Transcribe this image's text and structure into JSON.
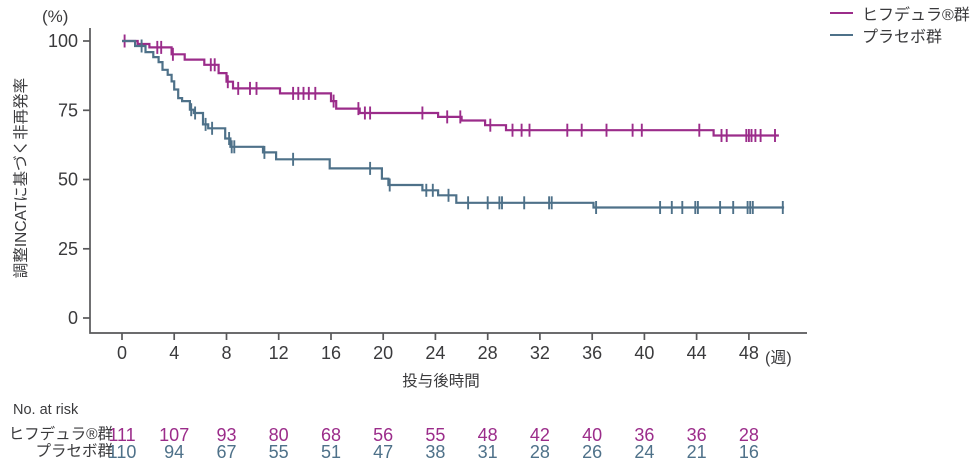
{
  "labels": {
    "percent_unit": "(%)",
    "y_axis_title": "調整INCATに基づく非再発率",
    "x_axis_title": "投与後時間",
    "week_unit": "(週)",
    "at_risk_header": "No. at risk"
  },
  "legend": {
    "items": [
      {
        "label": "ヒフデュラ®群",
        "color": "#9b2c8a"
      },
      {
        "label": "プラセボ群",
        "color": "#4e7189"
      }
    ]
  },
  "colors": {
    "hifdura": "#9b2c8a",
    "placebo": "#4e7189",
    "axis": "#58585a",
    "text": "#3a3a3c"
  },
  "chart_data": {
    "type": "line",
    "subtype": "kaplan-meier-step",
    "title": "",
    "xlabel": "投与後時間",
    "x_unit": "週",
    "ylabel": "調整INCATに基づく非再発率",
    "y_unit": "%",
    "xticks": [
      0,
      4,
      8,
      12,
      16,
      20,
      24,
      28,
      32,
      36,
      40,
      44,
      48
    ],
    "yticks": [
      0,
      25,
      50,
      75,
      100
    ],
    "xlim": [
      0,
      52.4
    ],
    "ylim": [
      0,
      104.5
    ],
    "grid": false,
    "legend_position": "top-right",
    "series": [
      {
        "name": "ヒフデュラ®群",
        "color": "#9b2c8a",
        "steps": [
          [
            0,
            100
          ],
          [
            1.2,
            98.9
          ],
          [
            2.1,
            97.7
          ],
          [
            3.8,
            95.2
          ],
          [
            4.8,
            93.3
          ],
          [
            6.3,
            91.4
          ],
          [
            7.4,
            88.4
          ],
          [
            8.0,
            85.3
          ],
          [
            8.5,
            82.9
          ],
          [
            12.1,
            81.1
          ],
          [
            16.0,
            78.3
          ],
          [
            16.4,
            75.6
          ],
          [
            18.2,
            74.0
          ],
          [
            24.2,
            72.6
          ],
          [
            26.0,
            71.3
          ],
          [
            27.8,
            69.6
          ],
          [
            29.4,
            67.8
          ],
          [
            45.3,
            65.9
          ]
        ],
        "end_week": 50.3,
        "censor_weeks": [
          0.2,
          2.7,
          3.0,
          3.9,
          6.8,
          7.1,
          8.1,
          8.9,
          9.8,
          10.3,
          13.1,
          13.5,
          13.9,
          14.3,
          14.8,
          16.2,
          18.1,
          18.6,
          19.0,
          23.0,
          24.9,
          25.9,
          28.2,
          29.9,
          30.6,
          31.2,
          34.1,
          35.2,
          37.1,
          39.1,
          39.8,
          44.2,
          45.9,
          46.3,
          47.8,
          48.0,
          48.2,
          48.5,
          48.9,
          50.0
        ]
      },
      {
        "name": "プラセボ群",
        "color": "#4e7189",
        "steps": [
          [
            0,
            100
          ],
          [
            1.0,
            98.2
          ],
          [
            1.8,
            96.0
          ],
          [
            2.4,
            94.2
          ],
          [
            2.8,
            92.4
          ],
          [
            3.1,
            89.6
          ],
          [
            3.5,
            87.8
          ],
          [
            3.8,
            85.4
          ],
          [
            4.0,
            82.5
          ],
          [
            4.3,
            79.4
          ],
          [
            4.6,
            78.3
          ],
          [
            5.2,
            75.2
          ],
          [
            5.5,
            74.0
          ],
          [
            6.2,
            69.9
          ],
          [
            6.6,
            68.5
          ],
          [
            7.9,
            64.8
          ],
          [
            8.3,
            61.8
          ],
          [
            10.8,
            59.8
          ],
          [
            11.8,
            57.3
          ],
          [
            15.9,
            54.0
          ],
          [
            19.9,
            50.3
          ],
          [
            20.4,
            48.0
          ],
          [
            23.0,
            46.1
          ],
          [
            24.2,
            44.3
          ],
          [
            25.6,
            41.6
          ],
          [
            36.1,
            39.9
          ]
        ],
        "end_week": 50.7,
        "censor_weeks": [
          1.5,
          5.3,
          5.6,
          6.4,
          6.9,
          8.2,
          8.4,
          8.6,
          10.9,
          13.1,
          19.0,
          20.5,
          23.3,
          23.8,
          25.0,
          26.5,
          28.0,
          28.9,
          29.1,
          30.8,
          32.7,
          32.9,
          36.3,
          41.2,
          42.1,
          42.9,
          43.9,
          44.1,
          45.8,
          46.8,
          47.9,
          48.1,
          48.3,
          50.6
        ]
      }
    ],
    "at_risk": {
      "header": "No. at risk",
      "weeks": [
        0,
        4,
        8,
        12,
        16,
        20,
        24,
        28,
        32,
        36,
        40,
        44,
        48
      ],
      "rows": [
        {
          "label": "ヒフデュラ®群",
          "color": "#9b2c8a",
          "values": [
            111,
            107,
            93,
            80,
            68,
            56,
            55,
            48,
            42,
            40,
            36,
            36,
            28
          ]
        },
        {
          "label": "プラセボ群",
          "color": "#4e7189",
          "values": [
            110,
            94,
            67,
            55,
            51,
            47,
            38,
            31,
            28,
            26,
            24,
            21,
            16
          ]
        }
      ]
    }
  }
}
